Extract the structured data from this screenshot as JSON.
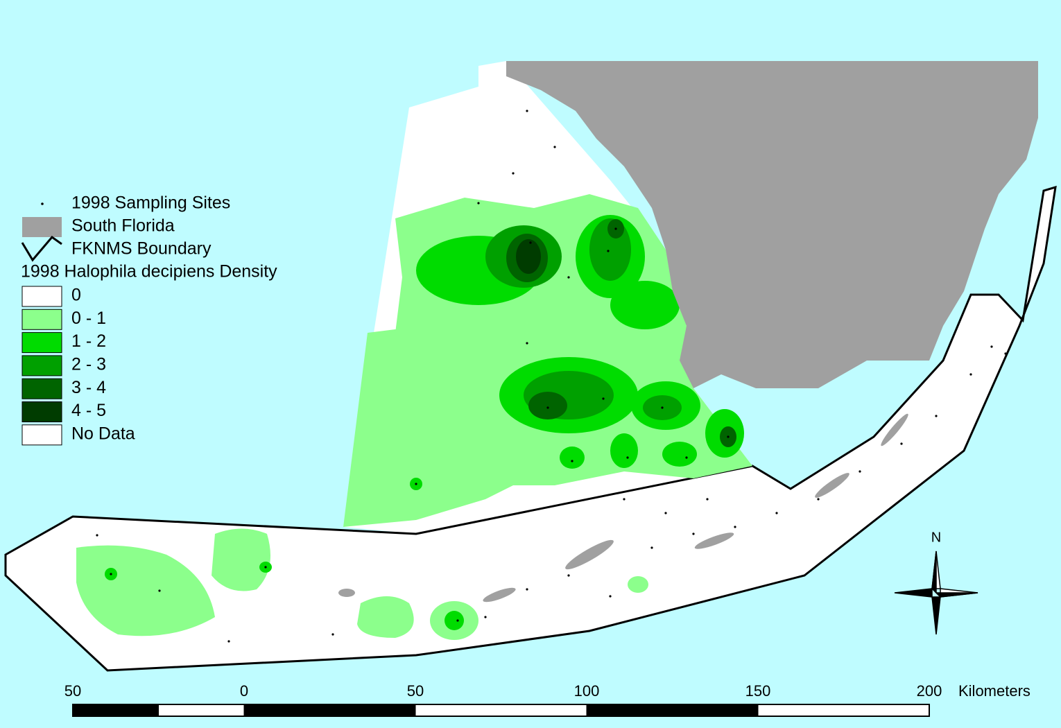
{
  "legend": {
    "sites": "1998 Sampling Sites",
    "land": "South Florida",
    "boundary": "FKNMS Boundary",
    "density_title": "1998 Halophila decipiens Density",
    "classes": [
      {
        "label": "0",
        "color": "#ffffff"
      },
      {
        "label": "0 - 1",
        "color": "#8cff8c"
      },
      {
        "label": "1 - 2",
        "color": "#00dc00"
      },
      {
        "label": "2 - 3",
        "color": "#00a000"
      },
      {
        "label": "3 - 4",
        "color": "#006400"
      },
      {
        "label": "4 - 5",
        "color": "#003c00"
      },
      {
        "label": "No Data",
        "color": "#ffffff"
      }
    ]
  },
  "scale_bar": {
    "labels": [
      "50",
      "0",
      "50",
      "100",
      "150",
      "200"
    ],
    "unit": "Kilometers"
  },
  "north_label": "N"
}
